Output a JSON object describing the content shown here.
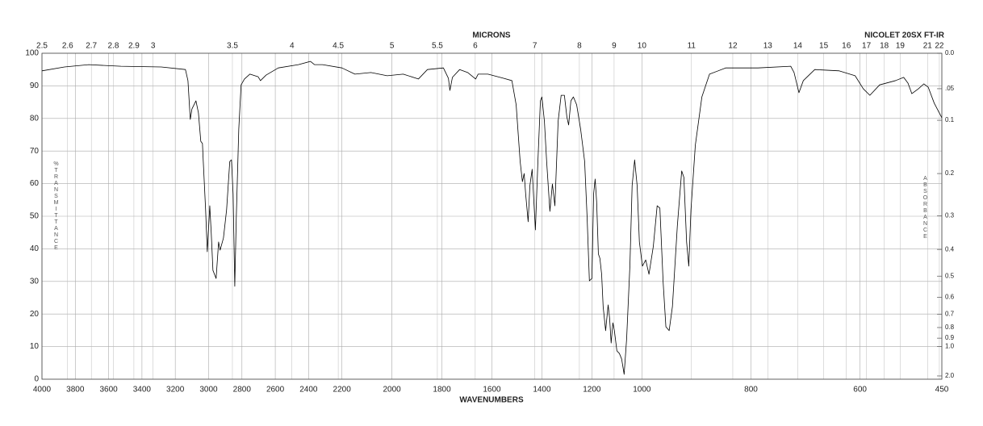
{
  "chart_data": {
    "type": "line",
    "title": "NICOLET 20SX FT-IR",
    "xlabel": "WAVENUMBERS",
    "x2label": "MICRONS",
    "ylabel": "%TRANSMITTANCE",
    "y2label": "ABSORBANCE",
    "color": "#000000",
    "grid": true,
    "xlim": [
      4000,
      450
    ],
    "xbreaks": [
      2200,
      1000
    ],
    "xticks": [
      4000,
      3800,
      3600,
      3400,
      3200,
      3000,
      2800,
      2600,
      2400,
      2200,
      2000,
      1800,
      1600,
      1400,
      1200,
      1000,
      800,
      600,
      450
    ],
    "x2ticks": [
      2.5,
      2.6,
      2.7,
      2.8,
      2.9,
      3,
      3.5,
      4,
      4.5,
      5,
      5.5,
      6,
      7,
      8,
      9,
      10,
      11,
      12,
      13,
      14,
      15,
      16,
      17,
      18,
      19,
      21,
      22
    ],
    "x2scale": "microns",
    "ylim": [
      0,
      100
    ],
    "yticks": [
      0,
      10,
      20,
      30,
      40,
      50,
      60,
      70,
      80,
      90,
      100
    ],
    "y2scale": "absorbance",
    "y2ticks": [
      {
        "value": 0,
        "label": "0.0"
      },
      {
        "value": 0.05,
        "label": ".05"
      },
      0.1,
      0.2,
      0.3,
      0.4,
      0.5,
      0.6,
      0.7,
      0.8,
      0.9,
      {
        "value": 1,
        "label": "1.0"
      },
      {
        "value": 2,
        "label": "2.0"
      }
    ],
    "x": [
      4000,
      3865,
      3719,
      3526,
      3284,
      3139,
      3124,
      3110,
      3100,
      3076,
      3061,
      3047,
      3037,
      3032,
      3018,
      3008,
      2993,
      2984,
      2974,
      2955,
      2940,
      2931,
      2911,
      2892,
      2873,
      2863,
      2853,
      2843,
      2834,
      2819,
      2805,
      2785,
      2752,
      2703,
      2689,
      2655,
      2582,
      2461,
      2389,
      2364,
      2316,
      2200,
      2148,
      2084,
      2019,
      1955,
      1894,
      1858,
      1794,
      1774,
      1768,
      1758,
      1729,
      1697,
      1665,
      1655,
      1616,
      1552,
      1520,
      1503,
      1487,
      1478,
      1471,
      1465,
      1455,
      1448,
      1439,
      1426,
      1416,
      1406,
      1400,
      1390,
      1381,
      1368,
      1358,
      1348,
      1335,
      1323,
      1310,
      1300,
      1293,
      1284,
      1274,
      1261,
      1245,
      1229,
      1219,
      1210,
      1200,
      1193,
      1187,
      1181,
      1174,
      1168,
      1161,
      1155,
      1145,
      1135,
      1129,
      1123,
      1116,
      1110,
      1100,
      1090,
      1081,
      1071,
      1061,
      1048,
      1039,
      1029,
      1019,
      1010,
      999,
      993,
      987,
      979,
      972,
      967,
      961,
      956,
      950,
      944,
      935,
      927,
      923,
      918,
      914,
      910,
      902,
      890,
      876,
      846,
      787,
      727,
      721,
      712,
      704,
      683,
      638,
      609,
      594,
      582,
      564,
      535,
      520,
      512,
      505,
      493,
      483,
      475,
      464,
      450
    ],
    "values": [
      94.6,
      95.8,
      96.5,
      96,
      95.8,
      95,
      91.6,
      79.7,
      82.9,
      85.4,
      81.7,
      73,
      72.3,
      66.8,
      52,
      39.1,
      53.2,
      44.6,
      33.4,
      30.9,
      42.1,
      39.6,
      43.3,
      52,
      66.8,
      67.3,
      56.9,
      28.5,
      49.5,
      76.7,
      90.3,
      92.1,
      93.6,
      92.8,
      91.6,
      93.3,
      95.5,
      96.5,
      97.5,
      96.5,
      96.5,
      95.5,
      93.6,
      94.1,
      93.1,
      93.6,
      92.1,
      95,
      95.5,
      92.3,
      88.6,
      92.6,
      95,
      94.1,
      92.1,
      93.6,
      93.6,
      92.3,
      91.6,
      84.2,
      66.8,
      60.6,
      63.1,
      56.9,
      48.3,
      59.4,
      64.4,
      45.8,
      66.8,
      85.4,
      86.6,
      79.2,
      66.8,
      51.5,
      59.9,
      53.2,
      79.2,
      87.1,
      87.1,
      80.4,
      78,
      85.4,
      86.6,
      84.2,
      76.7,
      66.8,
      49.5,
      30.2,
      30.9,
      56.9,
      61.4,
      54.5,
      38.4,
      37.1,
      32.2,
      22.3,
      14.9,
      22.8,
      18.6,
      11.1,
      17.3,
      14.9,
      8.7,
      7.9,
      6.2,
      1.5,
      12.4,
      34.7,
      59.4,
      67.3,
      59.4,
      42.1,
      34.7,
      36.6,
      32.2,
      40.8,
      53.2,
      52.5,
      29.7,
      16.1,
      14.9,
      22.3,
      47,
      63.9,
      61.9,
      42.1,
      34.7,
      52,
      71.8,
      86.6,
      93.6,
      95.5,
      95.5,
      96,
      94.1,
      87.9,
      91.6,
      95,
      94.6,
      93.1,
      89.1,
      87.1,
      90.3,
      91.6,
      92.6,
      90.8,
      87.6,
      89.1,
      90.6,
      89.6,
      84.7,
      80.2
    ]
  }
}
